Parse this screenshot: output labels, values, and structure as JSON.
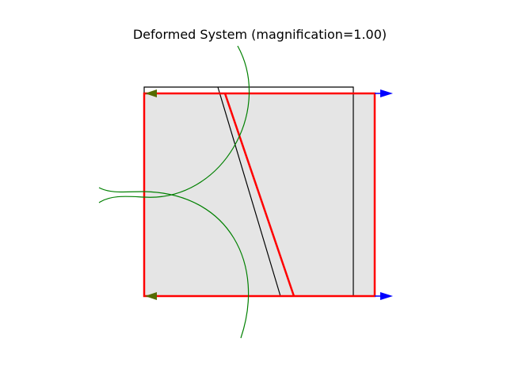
{
  "title": "Deformed System (magnification=1.00)",
  "colors": {
    "background": "#ffffff",
    "fill": "#e5e5e5",
    "undeformed": "#000000",
    "deformed": "#ff0000",
    "arcs": "#008000",
    "arrow_blue": "#0000ff",
    "arrow_green": "#556b00"
  },
  "legend": []
}
